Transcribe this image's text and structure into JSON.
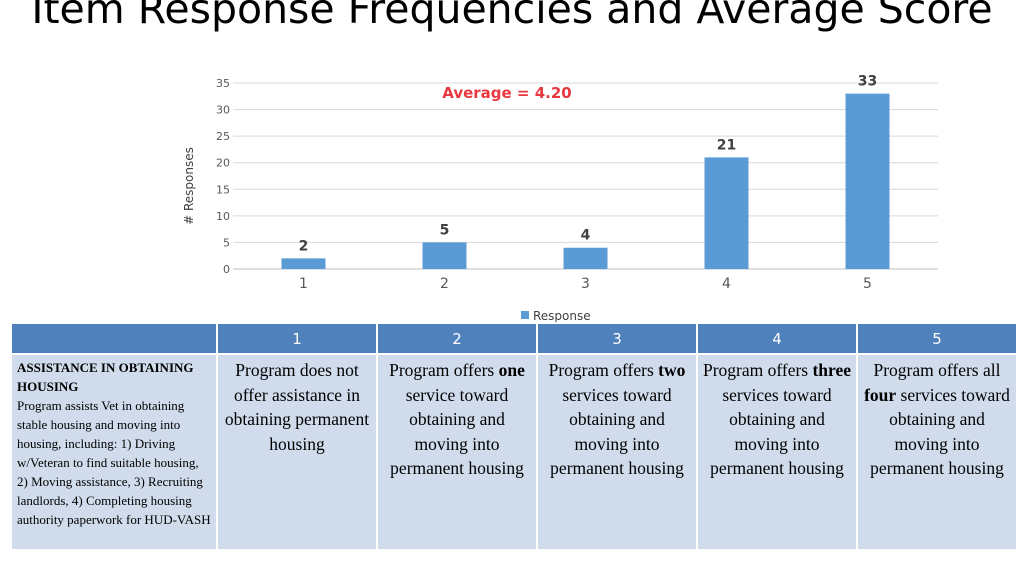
{
  "title": "Item Response Frequencies and Average Score",
  "colors": {
    "bar": "#5b9bd5",
    "average": "#e8383d",
    "header": "#4f81bd",
    "cell": "#d0dcec"
  },
  "chart_data": {
    "type": "bar",
    "categories": [
      "1",
      "2",
      "3",
      "4",
      "5"
    ],
    "series": [
      {
        "name": "Response",
        "values": [
          2,
          5,
          4,
          21,
          33
        ]
      }
    ],
    "ylabel": "#  Responses",
    "xlabel": "",
    "ylim": [
      0,
      35
    ],
    "yticks": [
      "0",
      "5",
      "10",
      "15",
      "20",
      "25",
      "30",
      "35"
    ],
    "annotation": "Average = 4.20",
    "legend": "bottom",
    "grid": true
  },
  "rubric": {
    "headers": [
      "",
      "1",
      "2",
      "3",
      "4",
      "5"
    ],
    "criterion_title": "ASSISTANCE IN OBTAINING HOUSING",
    "criterion_text": "Program assists Vet in obtaining stable housing and moving into housing, including: 1) Driving w/Veteran to find suitable housing, 2) Moving assistance, 3) Recruiting landlords, 4) Completing housing authority paperwork for HUD-VASH",
    "levels": [
      {
        "pre": "Program does not offer assistance in obtaining permanent housing",
        "bold": "",
        "post": ""
      },
      {
        "pre": "Program offers ",
        "bold": "one",
        "post": " service toward obtaining and moving into permanent housing"
      },
      {
        "pre": "Program offers ",
        "bold": "two",
        "post": " services toward obtaining and moving into permanent housing"
      },
      {
        "pre": "Program offers ",
        "bold": "three",
        "post": " services toward obtaining and moving into permanent housing"
      },
      {
        "pre": "Program offers all ",
        "bold": "four",
        "post": " services toward obtaining and moving into permanent housing"
      }
    ]
  }
}
